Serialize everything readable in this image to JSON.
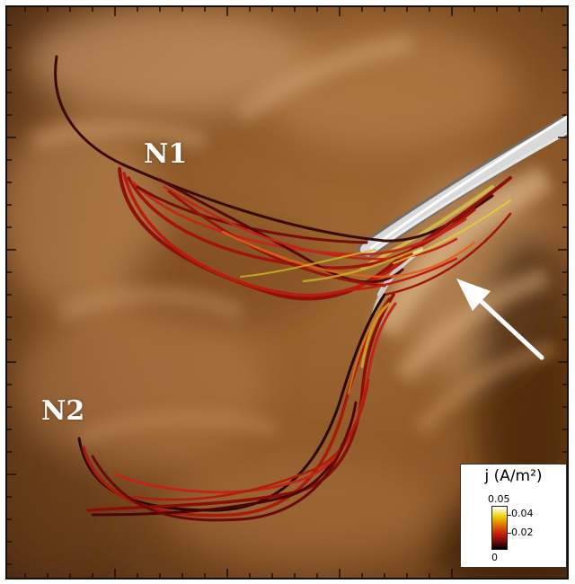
{
  "image": {
    "background_color": "#8a5626",
    "highlight_color": "#d9b184",
    "dark_color": "#3a1f0c"
  },
  "labels": {
    "n1": "N1",
    "n2": "N2"
  },
  "colorbar": {
    "title": "j (A/m²)",
    "max": "0.05",
    "tick_high": "0.04",
    "tick_low": "0.02",
    "min": "0",
    "colors": [
      "#ffffff",
      "#e8d000",
      "#e07000",
      "#c41e10",
      "#6e0808",
      "#000000"
    ]
  },
  "annotation": {
    "arrow_color": "#ffffff"
  }
}
